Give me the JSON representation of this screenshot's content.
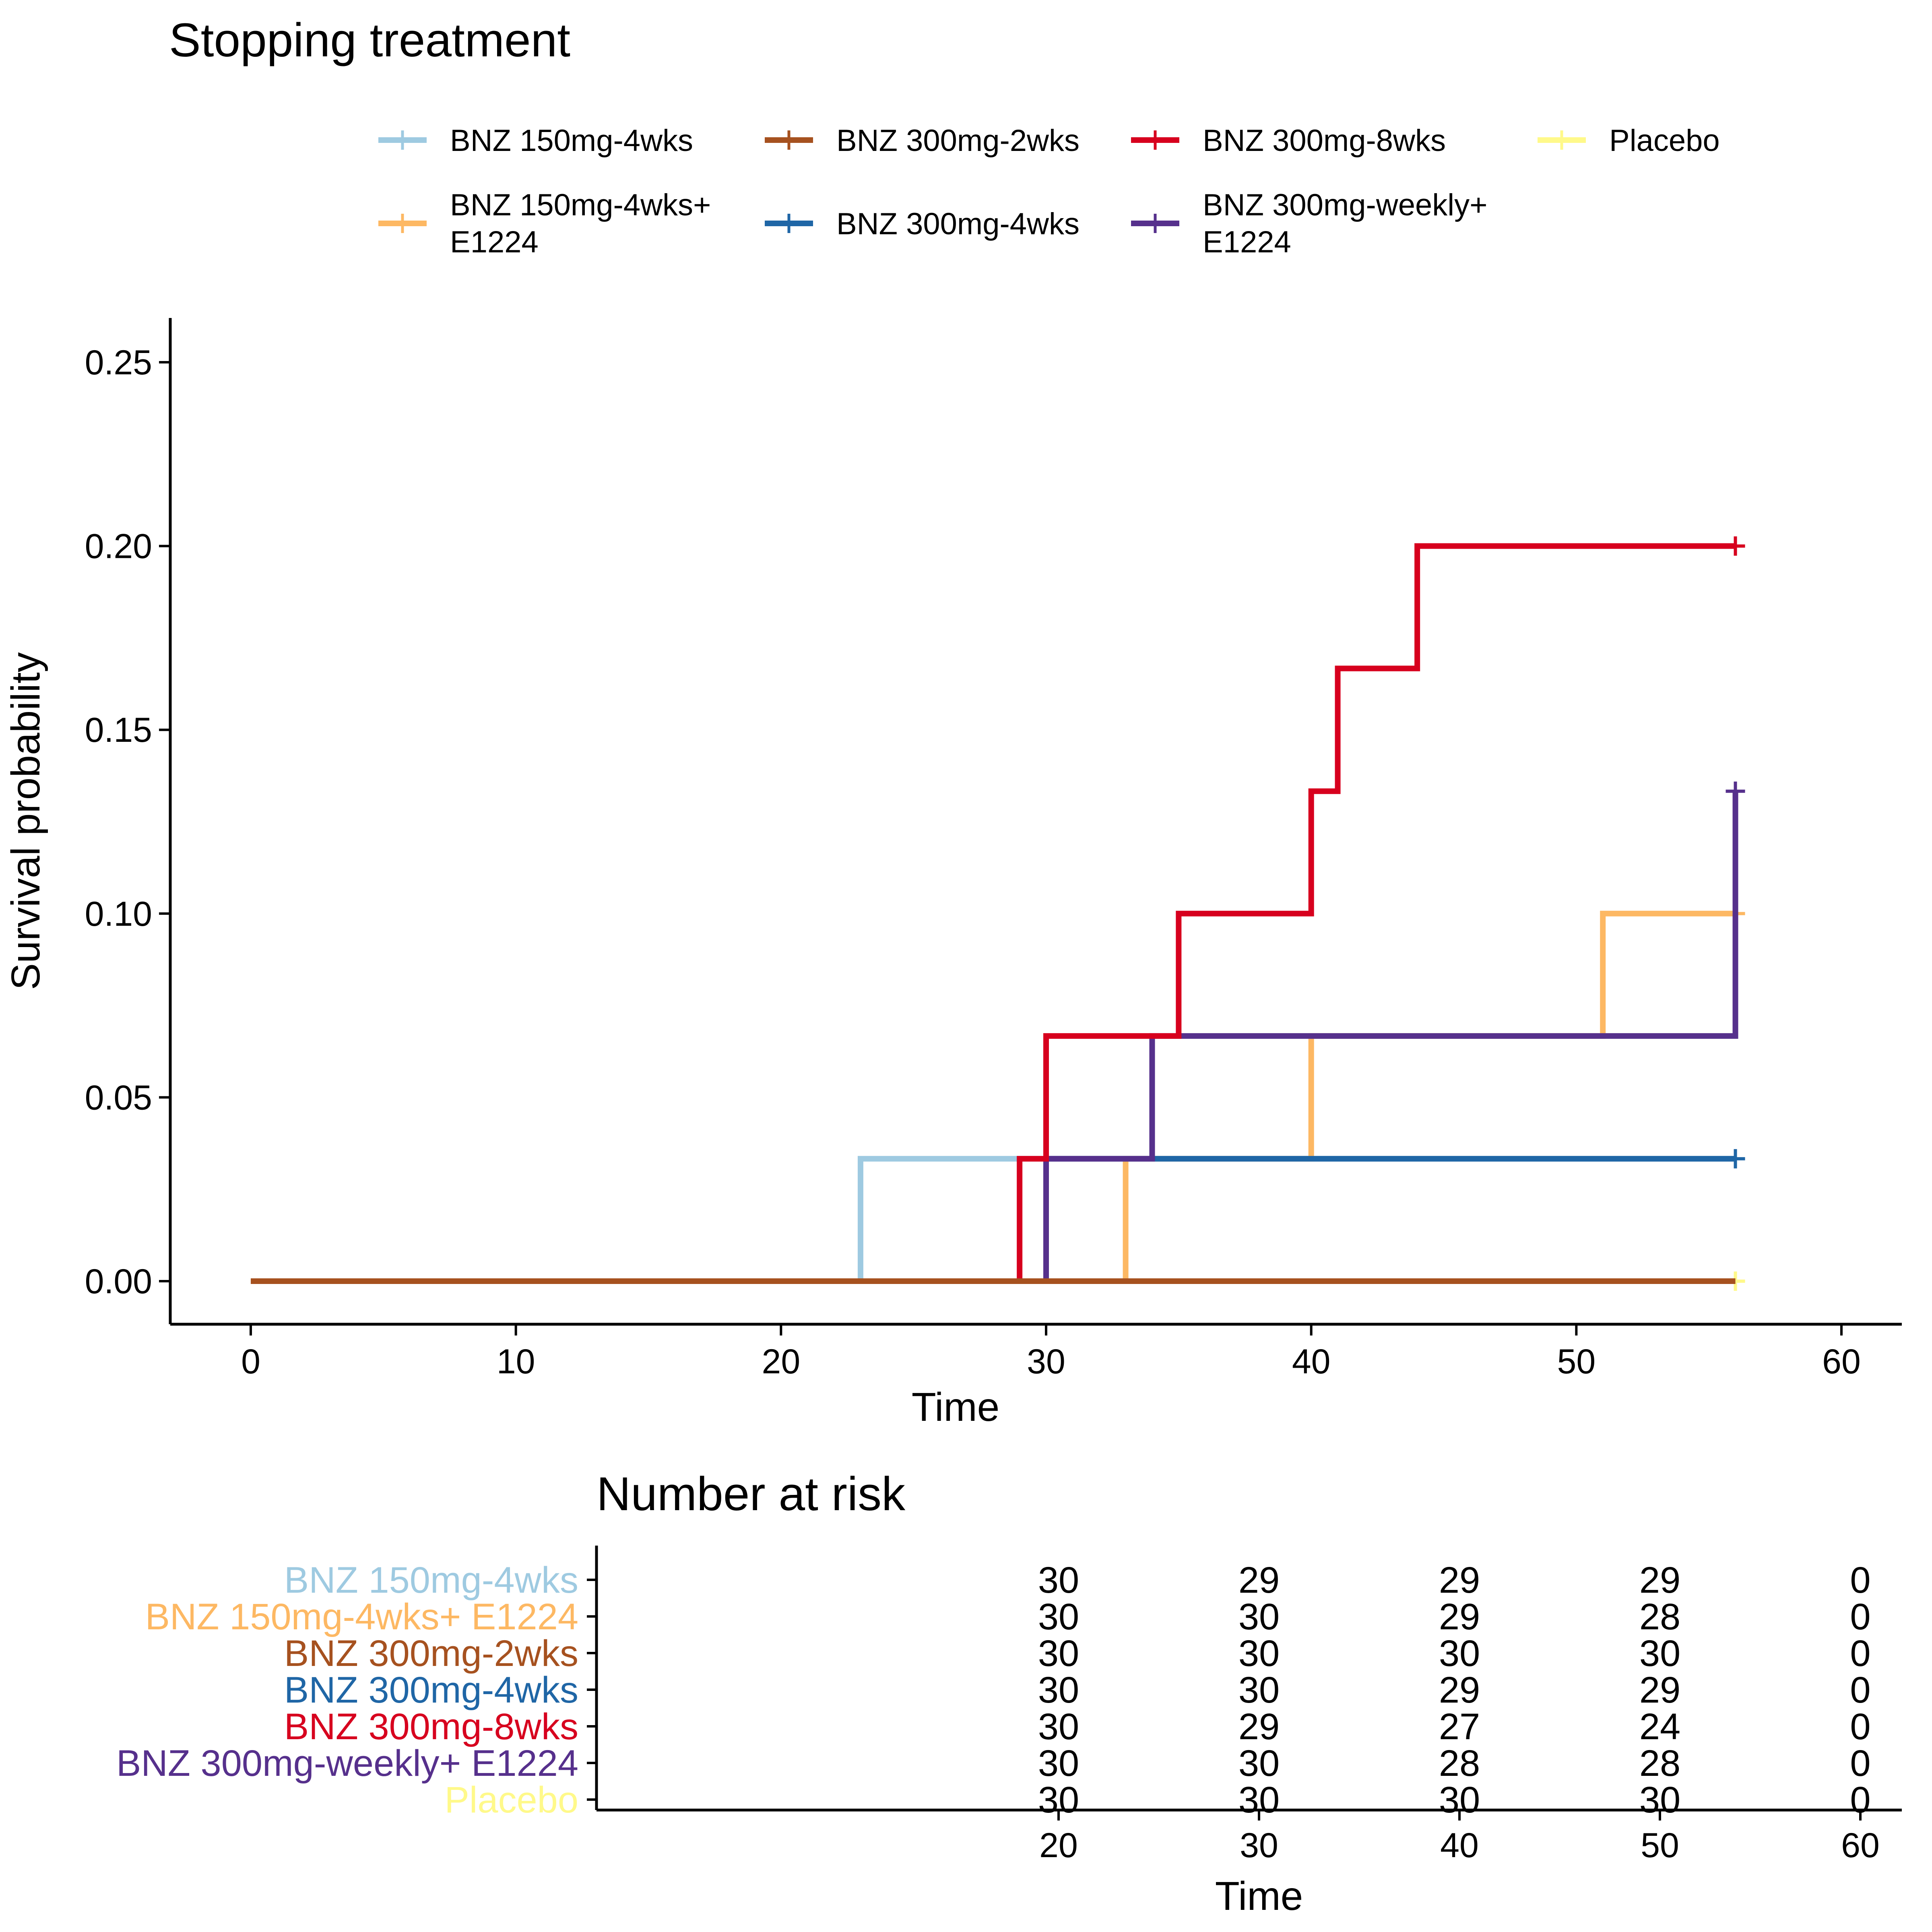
{
  "chart_data": {
    "type": "line",
    "title": "Stopping treatment",
    "xlabel": "Time",
    "ylabel": "Survival probability",
    "xlim": [
      -3,
      62.5
    ],
    "ylim": [
      -0.007,
      0.262
    ],
    "xticks": [
      0,
      10,
      20,
      30,
      40,
      50,
      60
    ],
    "yticks": [
      "0.00",
      "0.05",
      "0.10",
      "0.15",
      "0.20",
      "0.25"
    ],
    "grid": false,
    "legend_position": "top",
    "series": [
      {
        "name": "BNZ 150mg-4wks",
        "color": "#9ECAE1",
        "steps": [
          [
            0,
            0
          ],
          [
            23,
            0.0333
          ],
          [
            56,
            0.0333
          ]
        ],
        "censor": []
      },
      {
        "name": "BNZ 150mg-4wks+ E1224",
        "color": "#FDB863",
        "steps": [
          [
            0,
            0
          ],
          [
            33,
            0.0333
          ],
          [
            40,
            0.0667
          ],
          [
            51,
            0.1
          ],
          [
            56,
            0.1
          ]
        ],
        "censor": [
          56
        ]
      },
      {
        "name": "BNZ 300mg-2wks",
        "color": "#A6511F",
        "steps": [
          [
            0,
            0
          ],
          [
            56,
            0
          ]
        ],
        "censor": []
      },
      {
        "name": "BNZ 300mg-4wks",
        "color": "#1F66A6",
        "steps": [
          [
            0,
            0
          ],
          [
            30,
            0.0333
          ],
          [
            56,
            0.0333
          ]
        ],
        "censor": [
          56
        ]
      },
      {
        "name": "BNZ 300mg-8wks",
        "color": "#D7001E",
        "steps": [
          [
            0,
            0
          ],
          [
            29,
            0.0333
          ],
          [
            30,
            0.0667
          ],
          [
            35,
            0.1
          ],
          [
            40,
            0.1333
          ],
          [
            41,
            0.1667
          ],
          [
            44,
            0.2
          ],
          [
            56,
            0.2
          ]
        ],
        "censor": [
          56
        ]
      },
      {
        "name": "BNZ 300mg-weekly+ E1224",
        "color": "#56308C",
        "steps": [
          [
            0,
            0
          ],
          [
            30,
            0.0333
          ],
          [
            34,
            0.0667
          ],
          [
            56,
            0.1333
          ]
        ],
        "censor": [
          56
        ]
      },
      {
        "name": "Placebo",
        "color": "#FFF98A",
        "steps": [
          [
            0,
            0
          ],
          [
            56,
            0
          ]
        ],
        "censor": [
          56
        ]
      }
    ],
    "legend_items": [
      {
        "lines": [
          "BNZ 150mg-4wks"
        ],
        "color": "#9ECAE1",
        "col": 0,
        "row": 0
      },
      {
        "lines": [
          "BNZ 150mg-4wks+",
          "E1224"
        ],
        "color": "#FDB863",
        "col": 0,
        "row": 1
      },
      {
        "lines": [
          "BNZ 300mg-2wks"
        ],
        "color": "#A6511F",
        "col": 1,
        "row": 0
      },
      {
        "lines": [
          "BNZ 300mg-4wks"
        ],
        "color": "#1F66A6",
        "col": 1,
        "row": 1
      },
      {
        "lines": [
          "BNZ 300mg-8wks"
        ],
        "color": "#D7001E",
        "col": 2,
        "row": 0
      },
      {
        "lines": [
          "BNZ 300mg-weekly+",
          "E1224"
        ],
        "color": "#56308C",
        "col": 2,
        "row": 1
      },
      {
        "lines": [
          "Placebo"
        ],
        "color": "#FFF98A",
        "col": 3,
        "row": 0
      }
    ],
    "risk_table": {
      "title": "Number at risk",
      "xlabel": "Time",
      "times": [
        20,
        30,
        40,
        50,
        60
      ],
      "rows": [
        {
          "label": "BNZ 150mg-4wks",
          "color": "#9ECAE1",
          "values": [
            30,
            29,
            29,
            29,
            0
          ]
        },
        {
          "label": "BNZ 150mg-4wks+ E1224",
          "color": "#FDB863",
          "values": [
            30,
            30,
            29,
            28,
            0
          ]
        },
        {
          "label": "BNZ 300mg-2wks",
          "color": "#A6511F",
          "values": [
            30,
            30,
            30,
            30,
            0
          ]
        },
        {
          "label": "BNZ 300mg-4wks",
          "color": "#1F66A6",
          "values": [
            30,
            30,
            29,
            29,
            0
          ]
        },
        {
          "label": "BNZ 300mg-8wks",
          "color": "#D7001E",
          "values": [
            30,
            29,
            27,
            24,
            0
          ]
        },
        {
          "label": "BNZ 300mg-weekly+ E1224",
          "color": "#56308C",
          "values": [
            30,
            30,
            28,
            28,
            0
          ]
        },
        {
          "label": "Placebo",
          "color": "#FFF98A",
          "values": [
            30,
            30,
            30,
            30,
            0
          ]
        }
      ]
    }
  }
}
